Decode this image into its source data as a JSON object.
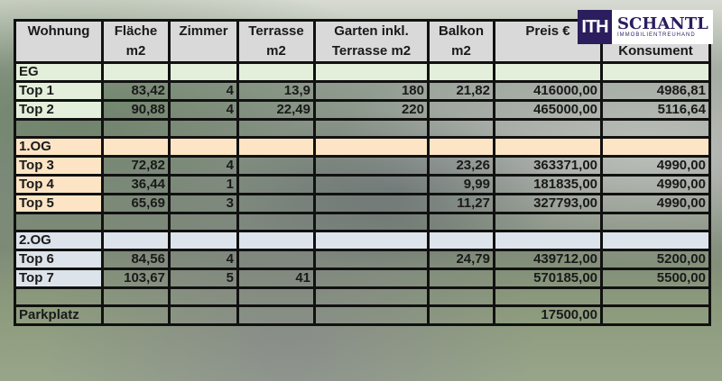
{
  "logo": {
    "mark": "ITH",
    "name": "SCHANTL",
    "subtitle": "IMMOBILIENTREUHAND",
    "color": "#2c1d5e"
  },
  "colors": {
    "header": "#d9d9d9",
    "eg": "#e3efda",
    "og1": "#fce4c4",
    "og2": "#dde3ea"
  },
  "table": {
    "headers": [
      {
        "line1": "Wohnung",
        "line2": ""
      },
      {
        "line1": "Fläche",
        "line2": "m2"
      },
      {
        "line1": "Zimmer",
        "line2": ""
      },
      {
        "line1": "Terrasse",
        "line2": "m2"
      },
      {
        "line1": "Garten inkl.",
        "line2": "Terrasse m2"
      },
      {
        "line1": "Balkon",
        "line2": "m2"
      },
      {
        "line1": "Preis €",
        "line2": ""
      },
      {
        "line1": "",
        "line2": "Konsument"
      }
    ],
    "rows": [
      {
        "type": "eg",
        "cells": [
          "EG",
          "",
          "",
          "",
          "",
          "",
          "",
          ""
        ]
      },
      {
        "type": "top-eg",
        "cells": [
          "Top 1",
          "83,42",
          "4",
          "13,9",
          "180",
          "21,82",
          "416000,00",
          "4986,81"
        ]
      },
      {
        "type": "top-eg",
        "cells": [
          "Top 2",
          "90,88",
          "4",
          "22,49",
          "220",
          "",
          "465000,00",
          "5116,64"
        ]
      },
      {
        "type": "blank",
        "cells": [
          "",
          "",
          "",
          "",
          "",
          "",
          "",
          ""
        ]
      },
      {
        "type": "og1",
        "cells": [
          "1.OG",
          "",
          "",
          "",
          "",
          "",
          "",
          ""
        ]
      },
      {
        "type": "top-og1",
        "cells": [
          "Top 3",
          "72,82",
          "4",
          "",
          "",
          "23,26",
          "363371,00",
          "4990,00"
        ]
      },
      {
        "type": "top-og1",
        "cells": [
          "Top 4",
          "36,44",
          "1",
          "",
          "",
          "9,99",
          "181835,00",
          "4990,00"
        ]
      },
      {
        "type": "top-og1",
        "cells": [
          "Top 5",
          "65,69",
          "3",
          "",
          "",
          "11,27",
          "327793,00",
          "4990,00"
        ]
      },
      {
        "type": "blank",
        "cells": [
          "",
          "",
          "",
          "",
          "",
          "",
          "",
          ""
        ]
      },
      {
        "type": "og2",
        "cells": [
          "2.OG",
          "",
          "",
          "",
          "",
          "",
          "",
          ""
        ]
      },
      {
        "type": "top-og2",
        "cells": [
          "Top 6",
          "84,56",
          "4",
          "",
          "",
          "24,79",
          "439712,00",
          "5200,00"
        ]
      },
      {
        "type": "top-og2",
        "cells": [
          "Top 7",
          "103,67",
          "5",
          "41",
          "",
          "",
          "570185,00",
          "5500,00"
        ]
      },
      {
        "type": "blank",
        "cells": [
          "",
          "",
          "",
          "",
          "",
          "",
          "",
          ""
        ]
      },
      {
        "type": "parking",
        "cells": [
          "Parkplatz",
          "",
          "",
          "",
          "",
          "",
          "17500,00",
          ""
        ]
      }
    ]
  }
}
